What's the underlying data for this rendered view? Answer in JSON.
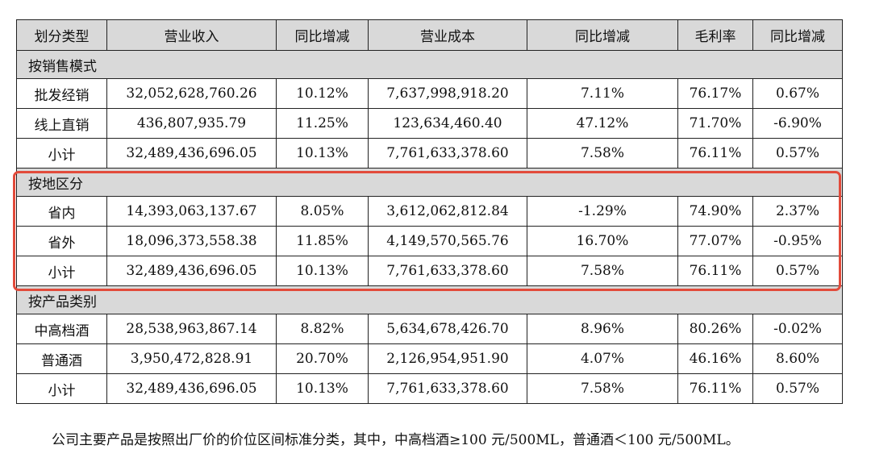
{
  "headers": [
    "划分类型",
    "营业收入",
    "同比增减",
    "营业成本",
    "同比增减",
    "毛利率",
    "同比增减"
  ],
  "sections": [
    {
      "title": "按销售模式",
      "rows": [
        [
          "批发经销",
          "32,052,628,760.26",
          "10.12%",
          "7,637,998,918.20",
          "7.11%",
          "76.17%",
          "0.67%"
        ],
        [
          "线上直销",
          "436,807,935.79",
          "11.25%",
          "123,634,460.40",
          "47.12%",
          "71.70%",
          "-6.90%"
        ],
        [
          "小计",
          "32,489,436,696.05",
          "10.13%",
          "7,761,633,378.60",
          "7.58%",
          "76.11%",
          "0.57%"
        ]
      ]
    },
    {
      "title": "按地区分",
      "rows": [
        [
          "省内",
          "14,393,063,137.67",
          "8.05%",
          "3,612,062,812.84",
          "-1.29%",
          "74.90%",
          "2.37%"
        ],
        [
          "省外",
          "18,096,373,558.38",
          "11.85%",
          "4,149,570,565.76",
          "16.70%",
          "77.07%",
          "-0.95%"
        ],
        [
          "小计",
          "32,489,436,696.05",
          "10.13%",
          "7,761,633,378.60",
          "7.58%",
          "76.11%",
          "0.57%"
        ]
      ]
    },
    {
      "title": "按产品类别",
      "rows": [
        [
          "中高档酒",
          "28,538,963,867.14",
          "8.82%",
          "5,634,678,426.70",
          "8.96%",
          "80.26%",
          "-0.02%"
        ],
        [
          "普通酒",
          "3,950,472,828.91",
          "20.70%",
          "2,126,954,951.90",
          "4.07%",
          "46.16%",
          "8.60%"
        ],
        [
          "小计",
          "32,489,436,696.05",
          "10.13%",
          "7,761,633,378.60",
          "7.58%",
          "76.11%",
          "0.57%"
        ]
      ]
    }
  ],
  "highlight_color": "#e24b3b",
  "header_bg": "#d9d9d9",
  "footnote": "公司主要产品是按照出厂价的价位区间标准分类，其中，中高档酒≥100 元/500ML，普通酒＜100 元/500ML。"
}
